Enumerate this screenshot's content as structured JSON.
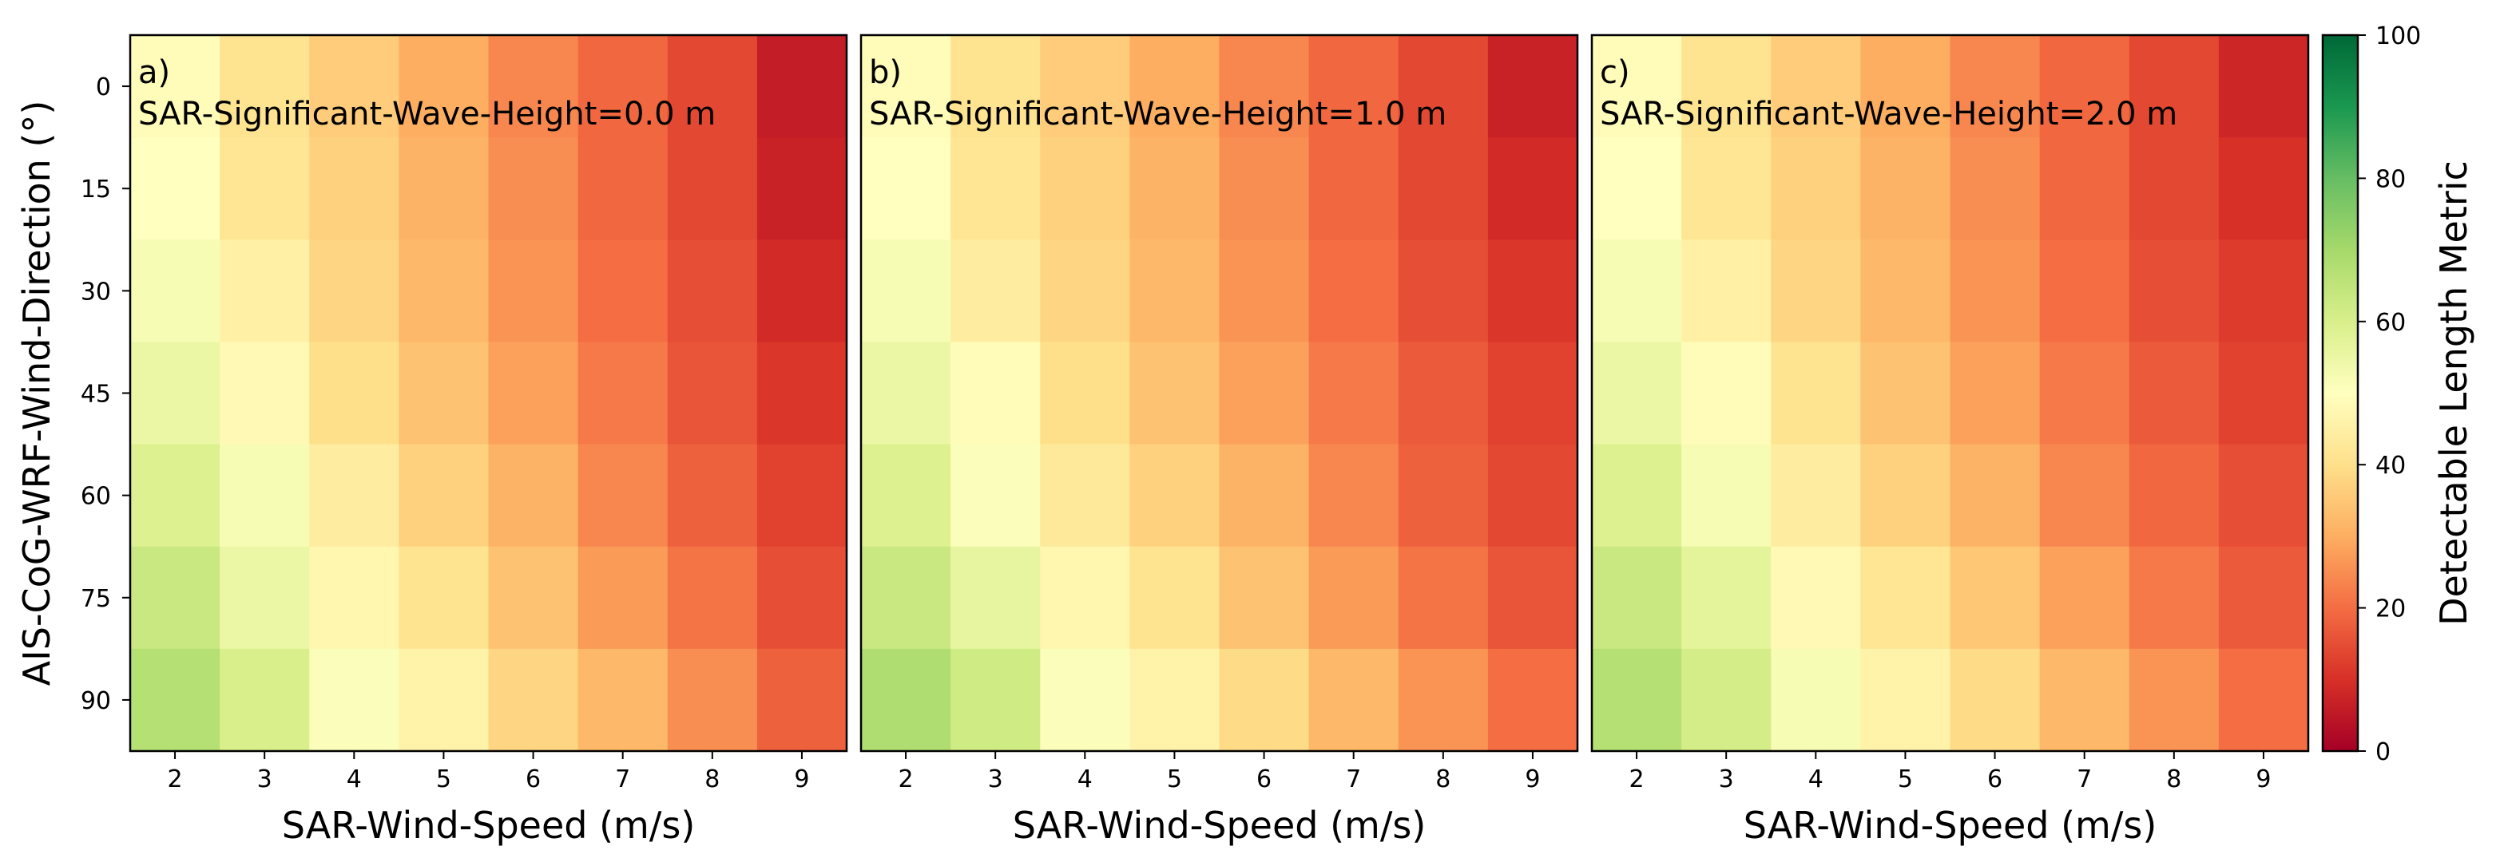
{
  "figure_title": "",
  "chart_data": [
    {
      "type": "heatmap",
      "panel_label": "a)",
      "title": "SAR-Significant-Wave-Height=0.0 m",
      "xlabel": "SAR-Wind-Speed (m/s)",
      "ylabel": "AIS-CoG-WRF-Wind-Direction (°)",
      "x": [
        2,
        3,
        4,
        5,
        6,
        7,
        8,
        9
      ],
      "y": [
        0,
        15,
        30,
        45,
        60,
        75,
        90
      ],
      "values": [
        [
          49,
          41,
          36,
          30,
          24,
          19,
          14,
          6
        ],
        [
          50,
          42,
          37,
          31,
          25,
          19,
          14,
          7
        ],
        [
          52,
          45,
          38,
          32,
          26,
          20,
          15,
          9
        ],
        [
          55,
          48,
          40,
          34,
          28,
          22,
          16,
          11
        ],
        [
          59,
          52,
          44,
          37,
          31,
          24,
          18,
          13
        ],
        [
          63,
          55,
          47,
          41,
          34,
          27,
          21,
          15
        ],
        [
          67,
          60,
          51,
          46,
          38,
          32,
          25,
          18
        ]
      ]
    },
    {
      "type": "heatmap",
      "panel_label": "b)",
      "title": "SAR-Significant-Wave-Height=1.0 m",
      "xlabel": "SAR-Wind-Speed (m/s)",
      "ylabel": "",
      "x": [
        2,
        3,
        4,
        5,
        6,
        7,
        8,
        9
      ],
      "y": [
        0,
        15,
        30,
        45,
        60,
        75,
        90
      ],
      "values": [
        [
          49,
          41,
          36,
          30,
          24,
          19,
          14,
          7
        ],
        [
          50,
          42,
          37,
          31,
          25,
          19,
          14,
          9
        ],
        [
          52,
          44,
          38,
          32,
          26,
          20,
          15,
          11
        ],
        [
          55,
          49,
          40,
          34,
          28,
          22,
          17,
          13
        ],
        [
          59,
          51,
          43,
          37,
          31,
          24,
          18,
          14
        ],
        [
          63,
          56,
          47,
          41,
          34,
          27,
          21,
          16
        ],
        [
          68,
          62,
          51,
          46,
          39,
          32,
          26,
          20
        ]
      ]
    },
    {
      "type": "heatmap",
      "panel_label": "c)",
      "title": "SAR-Significant-Wave-Height=2.0 m",
      "xlabel": "SAR-Wind-Speed (m/s)",
      "ylabel": "",
      "x": [
        2,
        3,
        4,
        5,
        6,
        7,
        8,
        9
      ],
      "y": [
        0,
        15,
        30,
        45,
        60,
        75,
        90
      ],
      "values": [
        [
          49,
          41,
          36,
          30,
          24,
          19,
          14,
          8
        ],
        [
          50,
          42,
          37,
          31,
          25,
          19,
          14,
          10
        ],
        [
          52,
          45,
          38,
          32,
          26,
          20,
          15,
          12
        ],
        [
          55,
          49,
          41,
          34,
          28,
          22,
          17,
          13
        ],
        [
          59,
          52,
          44,
          37,
          31,
          24,
          19,
          15
        ],
        [
          63,
          57,
          48,
          42,
          35,
          28,
          22,
          17
        ],
        [
          67,
          61,
          52,
          46,
          39,
          32,
          26,
          20
        ]
      ]
    }
  ],
  "colorbar": {
    "label": "Detectable Length Metric",
    "min": 0,
    "max": 100,
    "ticks": [
      0,
      20,
      40,
      60,
      80,
      100
    ],
    "colormap": "RdYlGn",
    "stops": [
      "#a50026",
      "#d73027",
      "#f46d43",
      "#fdae61",
      "#fee08b",
      "#ffffbf",
      "#d9ef8b",
      "#a6d96a",
      "#66bd63",
      "#1a9850",
      "#006837"
    ]
  }
}
